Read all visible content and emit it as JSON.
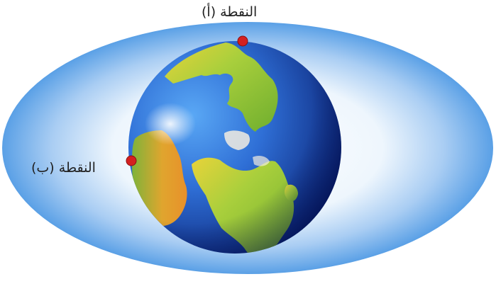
{
  "labels": {
    "point_a": "النقطة (أ)",
    "point_b": "النقطة (ب)"
  },
  "colors": {
    "atmosphere_outer": "#5aa0e6",
    "atmosphere_inner": "#ffffff",
    "ocean_dark": "#0b2a8a",
    "ocean_light": "#3b86e6",
    "land_green": "#9bc83a",
    "land_yellow": "#e8d33a",
    "land_orange": "#e89a2a",
    "point_marker": "#d42020"
  }
}
